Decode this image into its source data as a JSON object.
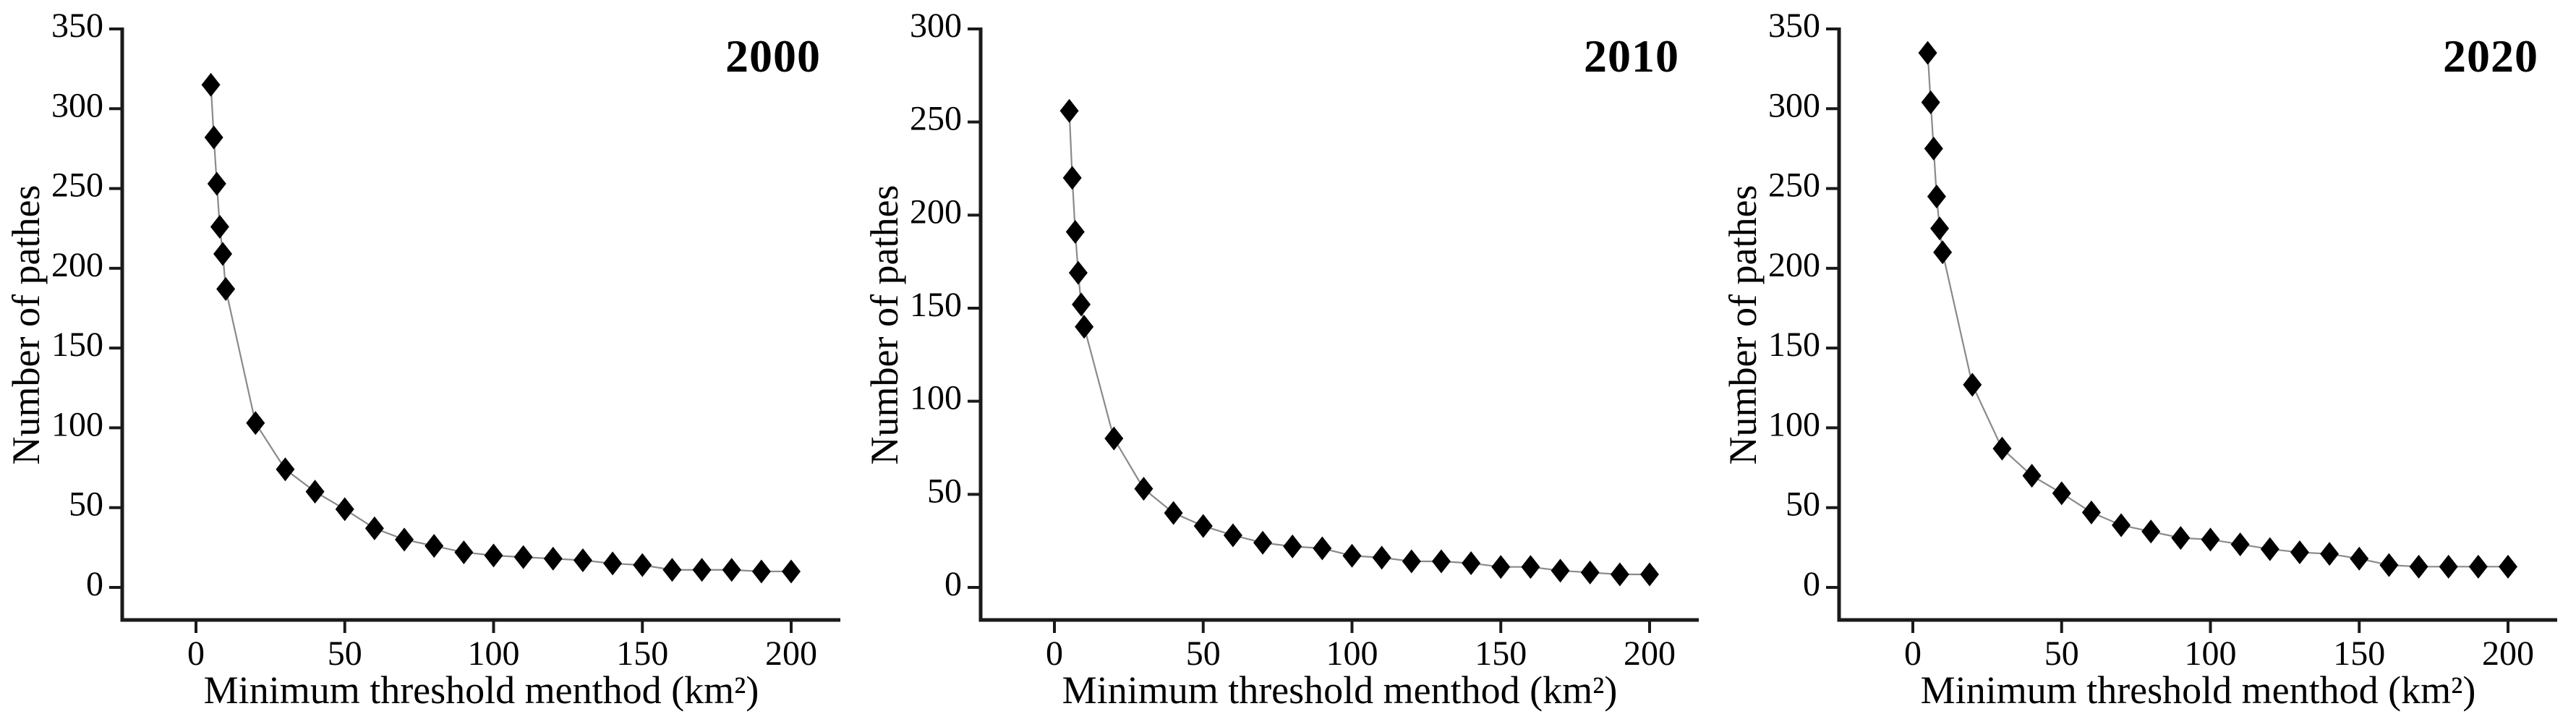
{
  "page": {
    "background_color": "#ffffff",
    "text_color": "#000000"
  },
  "chart_data": [
    {
      "type": "scatter",
      "connected": true,
      "title": "2000",
      "xlabel": "Minimum threshold menthod (km²)",
      "ylabel": "Number of pathes",
      "x": [
        5,
        6,
        7,
        8,
        9,
        10,
        20,
        30,
        40,
        50,
        60,
        70,
        80,
        90,
        100,
        110,
        120,
        130,
        140,
        150,
        160,
        170,
        180,
        190,
        200
      ],
      "values": [
        315,
        282,
        253,
        226,
        209,
        187,
        103,
        74,
        60,
        49,
        37,
        30,
        26,
        22,
        20,
        19,
        18,
        17,
        15,
        14,
        11,
        11,
        11,
        10,
        10
      ],
      "xlim": [
        0,
        200
      ],
      "ylim": [
        0,
        350
      ],
      "x_ticks": [
        0,
        50,
        100,
        150,
        200
      ],
      "y_tick_interval": 50,
      "marker": "diamond",
      "marker_color": "#000000",
      "line_color": "#8a8a8a",
      "axis_color": "#1a1a1a",
      "grid": false,
      "legend": "none"
    },
    {
      "type": "scatter",
      "connected": true,
      "title": "2010",
      "xlabel": "Minimum threshold menthod (km²)",
      "ylabel": "Number of pathes",
      "x": [
        5,
        6,
        7,
        8,
        9,
        10,
        20,
        30,
        40,
        50,
        60,
        70,
        80,
        90,
        100,
        110,
        120,
        130,
        140,
        150,
        160,
        170,
        180,
        190,
        200
      ],
      "values": [
        256,
        220,
        191,
        169,
        152,
        140,
        80,
        53,
        40,
        33,
        28,
        24,
        22,
        21,
        17,
        16,
        14,
        14,
        13,
        11,
        11,
        9,
        8,
        7,
        7
      ],
      "xlim": [
        0,
        200
      ],
      "ylim": [
        0,
        300
      ],
      "x_ticks": [
        0,
        50,
        100,
        150,
        200
      ],
      "y_tick_interval": 50,
      "marker": "diamond",
      "marker_color": "#000000",
      "line_color": "#8a8a8a",
      "axis_color": "#1a1a1a",
      "grid": false,
      "legend": "none"
    },
    {
      "type": "scatter",
      "connected": true,
      "title": "2020",
      "xlabel": "Minimum threshold menthod (km²)",
      "ylabel": "Number of pathes",
      "x": [
        5,
        6,
        7,
        8,
        9,
        10,
        20,
        30,
        40,
        50,
        60,
        70,
        80,
        90,
        100,
        110,
        120,
        130,
        140,
        150,
        160,
        170,
        180,
        190,
        200
      ],
      "values": [
        335,
        304,
        275,
        245,
        225,
        210,
        127,
        87,
        70,
        59,
        47,
        39,
        35,
        31,
        30,
        27,
        24,
        22,
        21,
        18,
        14,
        13,
        13,
        13,
        13
      ],
      "xlim": [
        0,
        200
      ],
      "ylim": [
        0,
        350
      ],
      "x_ticks": [
        0,
        50,
        100,
        150,
        200
      ],
      "y_tick_interval": 50,
      "marker": "diamond",
      "marker_color": "#000000",
      "line_color": "#8a8a8a",
      "axis_color": "#1a1a1a",
      "grid": false,
      "legend": "none"
    }
  ]
}
